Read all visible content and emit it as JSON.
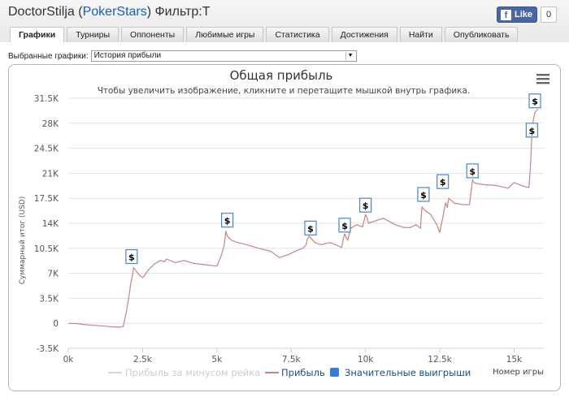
{
  "header": {
    "player": "DoctorStilja",
    "site": "PokerStars",
    "filter": "Фильтр:Т",
    "like_label": "Like",
    "like_count": "0"
  },
  "tabs": [
    {
      "label": "Графики",
      "active": true
    },
    {
      "label": "Турниры"
    },
    {
      "label": "Оппоненты"
    },
    {
      "label": "Любимые игры"
    },
    {
      "label": "Статистика"
    },
    {
      "label": "Достижения"
    },
    {
      "label": "Найти"
    },
    {
      "label": "Опубликовать"
    }
  ],
  "selector": {
    "label": "Выбранные графики:",
    "value": "История прибыли"
  },
  "icons": {
    "menu": "hamburger-menu-icon",
    "dropdown": "chevron-down-icon",
    "facebook": "facebook-icon"
  },
  "colors": {
    "profit_line": "#c48585",
    "rake_line": "#d8d8d8",
    "wins_marker": "#3a7bd5",
    "flag_border": "#4a86c8"
  },
  "chart_data": {
    "type": "line",
    "title": "Общая прибыль",
    "subtitle": "Чтобы увеличить изображение, кликните и перетащите мышкой внутрь графика.",
    "ylabel": "Суммарный итог (USD)",
    "xlabel": "Номер игры",
    "xlim": [
      0,
      16000
    ],
    "ylim": [
      -3500,
      31500
    ],
    "xticks": [
      0,
      2500,
      5000,
      7500,
      10000,
      12500,
      15000
    ],
    "xtick_labels": [
      "0k",
      "2.5k",
      "5k",
      "7.5k",
      "10k",
      "12.5k",
      "15k"
    ],
    "yticks": [
      -3500,
      0,
      3500,
      7000,
      10500,
      14000,
      17500,
      21000,
      24500,
      28000,
      31500
    ],
    "ytick_labels": [
      "-3.5K",
      "0",
      "3.5K",
      "7K",
      "10.5K",
      "14K",
      "17.5K",
      "21K",
      "24.5K",
      "28K",
      "31.5K"
    ],
    "legend": [
      "Прибыль за минусом рейка",
      "Прибыль",
      "Значительные выигрыши"
    ],
    "legend_position": "bottom",
    "series": [
      {
        "name": "Прибыль",
        "x": [
          0,
          300,
          600,
          900,
          1200,
          1500,
          1700,
          1850,
          1950,
          2050,
          2100,
          2150,
          2200,
          2300,
          2400,
          2500,
          2550,
          2700,
          2900,
          3100,
          3250,
          3300,
          3600,
          3900,
          4200,
          4600,
          5000,
          5150,
          5250,
          5300,
          5350,
          5500,
          5700,
          6000,
          6400,
          6800,
          7100,
          7400,
          7700,
          7900,
          8000,
          8050,
          8100,
          8300,
          8500,
          8800,
          9000,
          9200,
          9250,
          9300,
          9400,
          9500,
          9700,
          9900,
          10000,
          10050,
          10100,
          10300,
          10600,
          11000,
          11300,
          11500,
          11700,
          11850,
          11900,
          12000,
          12200,
          12400,
          12500,
          12700,
          12750,
          12800,
          13000,
          13300,
          13500,
          13600,
          13650,
          13700,
          14000,
          14400,
          14800,
          15000,
          15300,
          15500,
          15550,
          15600,
          15650,
          15700,
          15800
        ],
        "y": [
          0,
          -50,
          -200,
          -300,
          -400,
          -500,
          -550,
          -450,
          1500,
          4000,
          5500,
          6500,
          7800,
          7200,
          6700,
          6400,
          6600,
          7500,
          8300,
          8800,
          8600,
          9000,
          8500,
          8800,
          8400,
          8200,
          8000,
          9500,
          11000,
          12900,
          12200,
          11600,
          11300,
          11000,
          10500,
          10100,
          9200,
          9600,
          10200,
          10500,
          11000,
          11800,
          12200,
          11300,
          11000,
          11300,
          11000,
          10600,
          11800,
          12500,
          11600,
          13300,
          13800,
          13500,
          15200,
          14800,
          14000,
          14300,
          14700,
          13800,
          13400,
          13400,
          13800,
          13300,
          16300,
          15800,
          15200,
          13800,
          12700,
          16900,
          16200,
          17500,
          16800,
          16600,
          16600,
          20100,
          19700,
          19600,
          19400,
          19300,
          18900,
          19700,
          19200,
          19000,
          21800,
          26700,
          28500,
          29500,
          30000
        ]
      },
      {
        "name": "Значительные выигрыши",
        "x": [
          2130,
          5350,
          8150,
          9300,
          10000,
          11950,
          12600,
          13600,
          15600,
          15700
        ],
        "y": [
          7800,
          12900,
          11800,
          12200,
          15000,
          16500,
          18300,
          19800,
          25500,
          29600
        ]
      }
    ]
  }
}
